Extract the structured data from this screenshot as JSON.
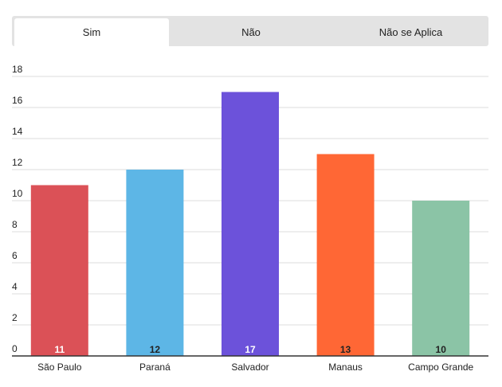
{
  "tabs": [
    {
      "label": "Sim",
      "active": true
    },
    {
      "label": "Não",
      "active": false
    },
    {
      "label": "Não se Aplica",
      "active": false
    }
  ],
  "chart_data": {
    "type": "bar",
    "categories": [
      "São Paulo",
      "Paraná",
      "Salvador",
      "Manaus",
      "Campo Grande"
    ],
    "values": [
      11,
      12,
      17,
      13,
      10
    ],
    "colors": [
      "#db5157",
      "#5db6e6",
      "#6c52da",
      "#ff6735",
      "#8bc4a6"
    ],
    "label_colors": [
      "#ffffff",
      "#222222",
      "#ffffff",
      "#222222",
      "#222222"
    ],
    "ylim": [
      0,
      18
    ],
    "yticks": [
      0,
      2,
      4,
      6,
      8,
      10,
      12,
      14,
      16,
      18
    ],
    "grid": true,
    "legend": "none"
  }
}
